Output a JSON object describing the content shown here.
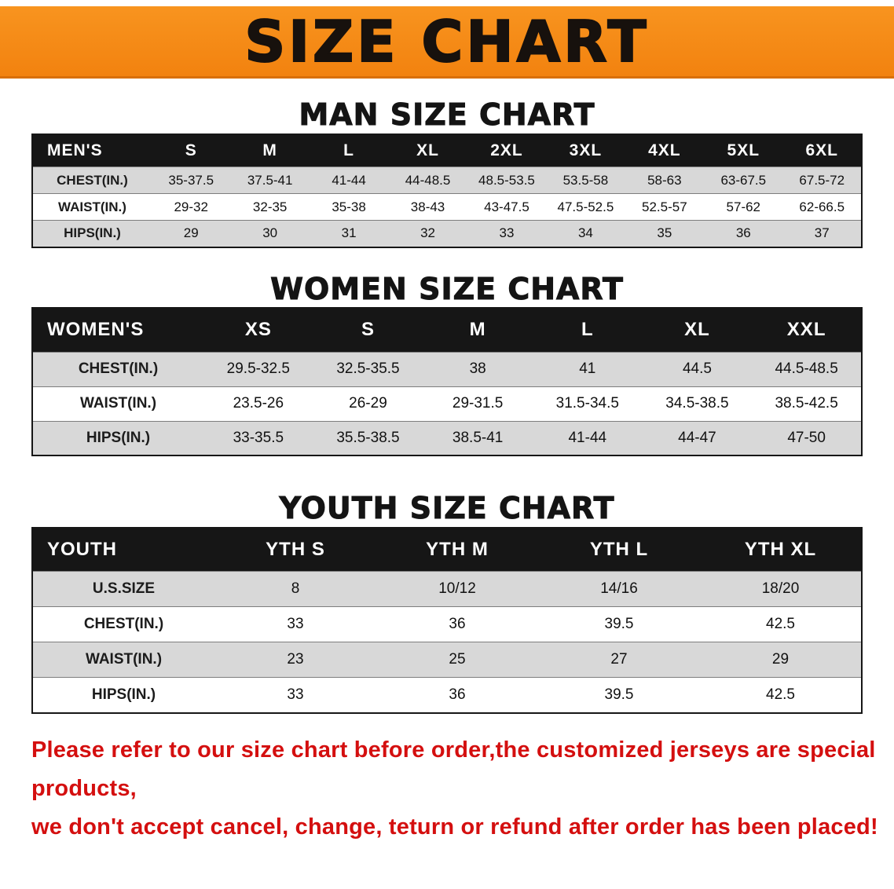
{
  "banner": {
    "title": "SIZE CHART",
    "bg_color": "#f68b1e",
    "text_color": "#17110d"
  },
  "chart_data": [
    {
      "type": "table",
      "title": "MAN SIZE CHART",
      "columns": [
        "MEN'S",
        "S",
        "M",
        "L",
        "XL",
        "2XL",
        "3XL",
        "4XL",
        "5XL",
        "6XL"
      ],
      "rows": [
        [
          "CHEST(IN.)",
          "35-37.5",
          "37.5-41",
          "41-44",
          "44-48.5",
          "48.5-53.5",
          "53.5-58",
          "58-63",
          "63-67.5",
          "67.5-72"
        ],
        [
          "WAIST(IN.)",
          "29-32",
          "32-35",
          "35-38",
          "38-43",
          "43-47.5",
          "47.5-52.5",
          "52.5-57",
          "57-62",
          "62-66.5"
        ],
        [
          "HIPS(IN.)",
          "29",
          "30",
          "31",
          "32",
          "33",
          "34",
          "35",
          "36",
          "37"
        ]
      ]
    },
    {
      "type": "table",
      "title": "WOMEN SIZE CHART",
      "columns": [
        "WOMEN'S",
        "XS",
        "S",
        "M",
        "L",
        "XL",
        "XXL"
      ],
      "rows": [
        [
          "CHEST(IN.)",
          "29.5-32.5",
          "32.5-35.5",
          "38",
          "41",
          "44.5",
          "44.5-48.5"
        ],
        [
          "WAIST(IN.)",
          "23.5-26",
          "26-29",
          "29-31.5",
          "31.5-34.5",
          "34.5-38.5",
          "38.5-42.5"
        ],
        [
          "HIPS(IN.)",
          "33-35.5",
          "35.5-38.5",
          "38.5-41",
          "41-44",
          "44-47",
          "47-50"
        ]
      ]
    },
    {
      "type": "table",
      "title": "YOUTH SIZE CHART",
      "columns": [
        "YOUTH",
        "YTH S",
        "YTH M",
        "YTH L",
        "YTH XL"
      ],
      "rows": [
        [
          "U.S.SIZE",
          "8",
          "10/12",
          "14/16",
          "18/20"
        ],
        [
          "CHEST(IN.)",
          "33",
          "36",
          "39.5",
          "42.5"
        ],
        [
          "WAIST(IN.)",
          "23",
          "25",
          "27",
          "29"
        ],
        [
          "HIPS(IN.)",
          "33",
          "36",
          "39.5",
          "42.5"
        ]
      ]
    }
  ],
  "disclaimer": {
    "line1": "Please refer to our size chart before order,the customized jerseys are special products,",
    "line2": "we don't accept cancel, change, teturn or refund after order has been placed!",
    "color": "#d40f0f"
  },
  "colors": {
    "header_row_bg": "#161616",
    "header_row_text": "#ffffff",
    "stripe_gray": "#d8d8d8",
    "stripe_white": "#ffffff"
  }
}
